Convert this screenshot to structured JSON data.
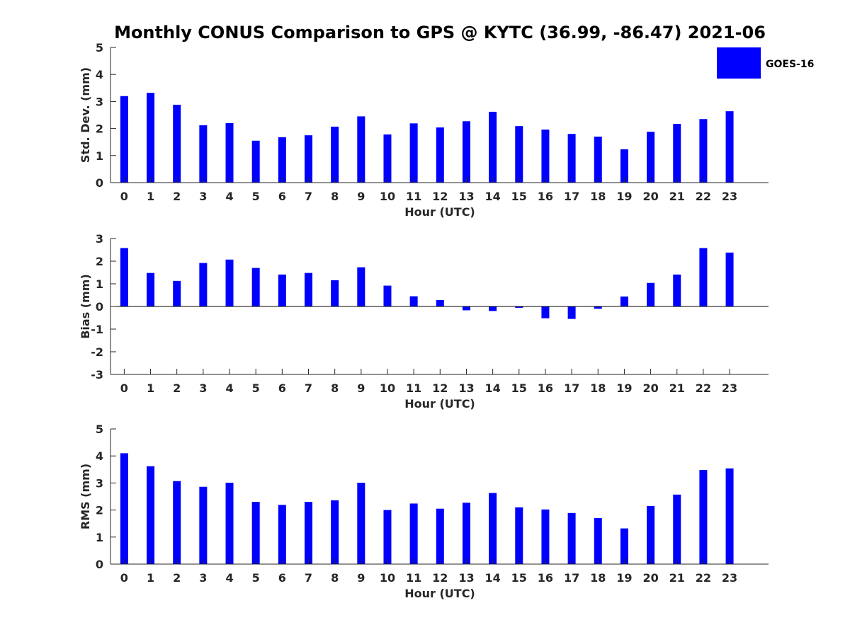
{
  "title": "Monthly CONUS Comparison to GPS @ KYTC (36.99, -86.47) 2021-06",
  "legend": {
    "label": "GOES-16",
    "color": "#0000ff",
    "placement": "top-right"
  },
  "chart_data": [
    {
      "type": "bar",
      "ylabel": "Std. Dev. (mm)",
      "xlabel": "Hour (UTC)",
      "ylim": [
        0,
        5
      ],
      "yticks": [
        "0",
        "1",
        "2",
        "3",
        "4",
        "5"
      ],
      "categories": [
        "0",
        "1",
        "2",
        "3",
        "4",
        "5",
        "6",
        "7",
        "8",
        "9",
        "10",
        "11",
        "12",
        "13",
        "14",
        "15",
        "16",
        "17",
        "18",
        "19",
        "20",
        "21",
        "22",
        "23"
      ],
      "series": [
        {
          "name": "GOES-16",
          "color": "#0000ff",
          "values": [
            3.2,
            3.32,
            2.88,
            2.12,
            2.2,
            1.55,
            1.68,
            1.75,
            2.07,
            2.45,
            1.78,
            2.19,
            2.04,
            2.27,
            2.62,
            2.09,
            1.96,
            1.8,
            1.7,
            1.23,
            1.88,
            2.17,
            2.35,
            2.64
          ]
        }
      ]
    },
    {
      "type": "bar",
      "ylabel": "Bias (mm)",
      "xlabel": "Hour (UTC)",
      "ylim": [
        -3,
        3
      ],
      "yticks": [
        "-3",
        "-2",
        "-1",
        "0",
        "1",
        "2",
        "3"
      ],
      "categories": [
        "0",
        "1",
        "2",
        "3",
        "4",
        "5",
        "6",
        "7",
        "8",
        "9",
        "10",
        "11",
        "12",
        "13",
        "14",
        "15",
        "16",
        "17",
        "18",
        "19",
        "20",
        "21",
        "22",
        "23"
      ],
      "series": [
        {
          "name": "GOES-16",
          "color": "#0000ff",
          "values": [
            2.58,
            1.48,
            1.13,
            1.92,
            2.07,
            1.7,
            1.41,
            1.48,
            1.16,
            1.73,
            0.92,
            0.45,
            0.28,
            -0.17,
            -0.2,
            -0.06,
            -0.52,
            -0.55,
            -0.1,
            0.44,
            1.04,
            1.41,
            2.58,
            2.38
          ]
        }
      ]
    },
    {
      "type": "bar",
      "ylabel": "RMS (mm)",
      "xlabel": "Hour (UTC)",
      "ylim": [
        0,
        5
      ],
      "yticks": [
        "0",
        "1",
        "2",
        "3",
        "4",
        "5"
      ],
      "categories": [
        "0",
        "1",
        "2",
        "3",
        "4",
        "5",
        "6",
        "7",
        "8",
        "9",
        "10",
        "11",
        "12",
        "13",
        "14",
        "15",
        "16",
        "17",
        "18",
        "19",
        "20",
        "21",
        "22",
        "23"
      ],
      "series": [
        {
          "name": "GOES-16",
          "color": "#0000ff",
          "values": [
            4.1,
            3.62,
            3.07,
            2.86,
            3.01,
            2.3,
            2.19,
            2.3,
            2.36,
            3.01,
            2.0,
            2.24,
            2.05,
            2.27,
            2.63,
            2.1,
            2.02,
            1.89,
            1.7,
            1.32,
            2.15,
            2.57,
            3.48,
            3.54
          ]
        }
      ]
    }
  ]
}
